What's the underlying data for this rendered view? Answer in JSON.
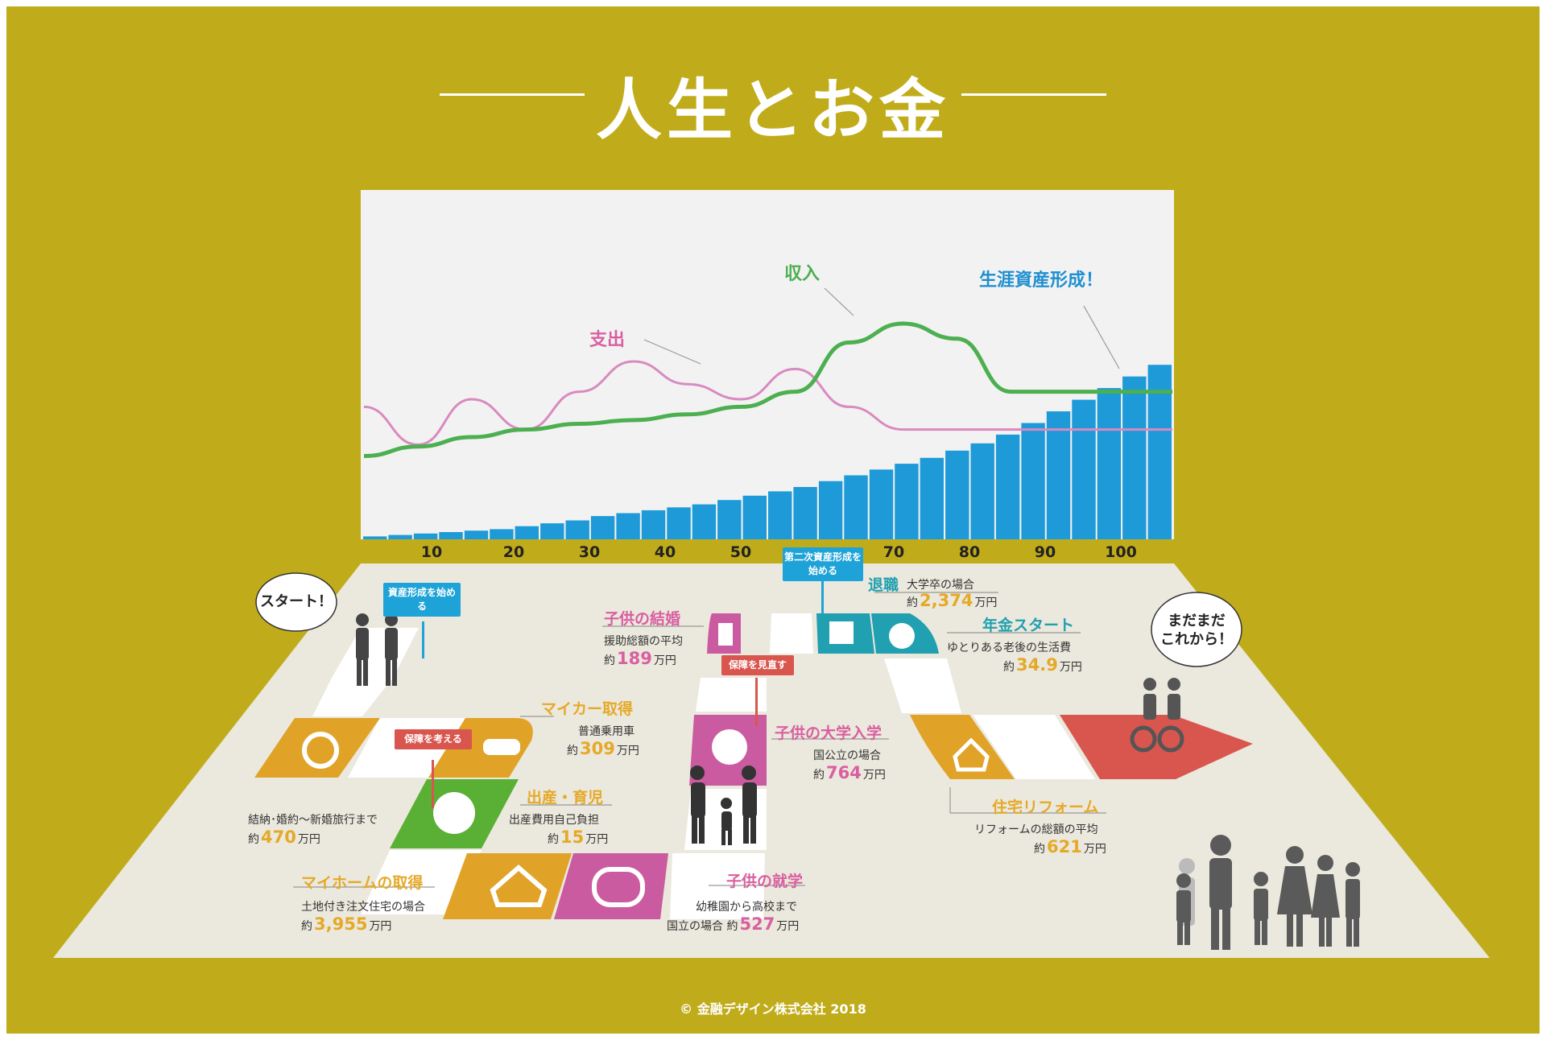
{
  "title": "人生とお金",
  "copyright": "© 金融デザイン株式会社 2018",
  "colors": {
    "frame": "#c0ac1b",
    "bars": "#1e9ad8",
    "income": "#4caf50",
    "expense": "#d98ac0",
    "accent_gold": "#e5a928",
    "accent_pink": "#d95fa0",
    "accent_teal": "#20a0b0"
  },
  "chart": {
    "expense_label": "支出",
    "income_label": "収入",
    "asset_label": "生涯資産形成！",
    "x_ticks": [
      "10",
      "20",
      "30",
      "40",
      "50",
      "70",
      "80",
      "90",
      "100"
    ]
  },
  "chart_data": {
    "type": "bar",
    "x_ticks": [
      "10",
      "20",
      "30",
      "40",
      "50",
      "70",
      "80",
      "90",
      "100"
    ],
    "bar_count": 32,
    "bars": [
      1,
      1.5,
      2,
      2.5,
      3,
      3.5,
      4.5,
      5.5,
      6.5,
      8,
      9,
      10,
      11,
      12,
      13.5,
      15,
      16.5,
      18,
      20,
      22,
      24,
      26,
      28,
      30.5,
      33,
      36,
      40,
      44,
      48,
      52,
      56,
      60
    ],
    "series": [
      {
        "name": "収入",
        "values": [
          5,
          7.5,
          10,
          12,
          13.5,
          14.5,
          16,
          18,
          22,
          35,
          40,
          36,
          22,
          22,
          22,
          22
        ]
      },
      {
        "name": "支出",
        "values": [
          18,
          8,
          20,
          12,
          22,
          30,
          24,
          20,
          28,
          18,
          12,
          12,
          12,
          12,
          12,
          12
        ]
      }
    ]
  },
  "signs": {
    "start_investing": "資産形成を始める",
    "second_investing": "第二次資産形成を始める",
    "review_insurance": "保障を見直す",
    "consider_insurance": "保障を考える"
  },
  "bubbles": {
    "start": "スタート！",
    "not_yet": "まだまだ\nこれから！"
  },
  "events": {
    "approx": "約",
    "unit": "万円",
    "child_wedding": {
      "title": "子供の結婚",
      "desc": "援助総額の平均",
      "amount": "189"
    },
    "car": {
      "title": "マイカー取得",
      "desc": "普通乗用車",
      "amount": "309"
    },
    "birth": {
      "title": "出産・育児",
      "desc": "出産費用自己負担",
      "amount": "15"
    },
    "marriage": {
      "desc": "結納･婚約～新婚旅行まで",
      "amount": "470"
    },
    "home": {
      "title": "マイホームの取得",
      "desc": "土地付き注文住宅の場合",
      "amount": "3,955"
    },
    "school": {
      "title": "子供の就学",
      "desc": "幼稚園から高校まで",
      "desc2": "国立の場合",
      "amount": "527"
    },
    "university": {
      "title": "子供の大学入学",
      "desc": "国公立の場合",
      "amount": "764"
    },
    "retirement": {
      "title": "退職",
      "desc": "大学卒の場合",
      "amount": "2,374"
    },
    "pension": {
      "title": "年金スタート",
      "desc": "ゆとりある老後の生活費",
      "amount": "34.9"
    },
    "reform": {
      "title": "住宅リフォーム",
      "desc": "リフォームの総額の平均",
      "amount": "621"
    }
  }
}
